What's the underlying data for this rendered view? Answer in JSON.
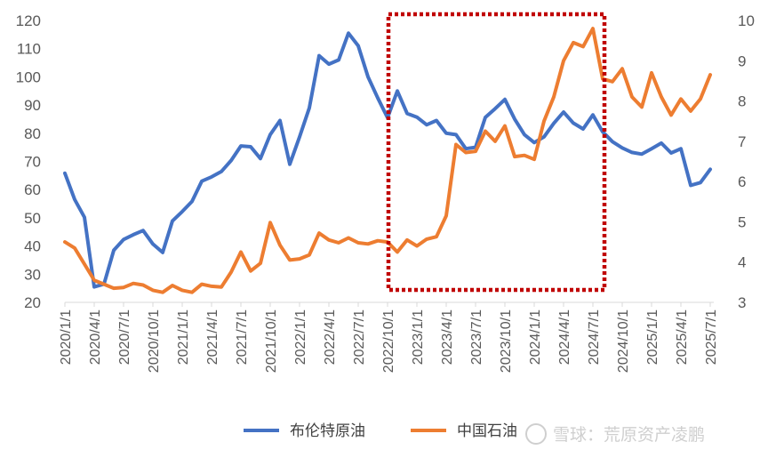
{
  "chart_data": {
    "type": "line",
    "title": "",
    "xlabel": "",
    "ylabel_left": "",
    "ylabel_right": "",
    "ylim_left": [
      20,
      120
    ],
    "ylim_right": [
      3,
      10
    ],
    "yticks_left": [
      "20",
      "30",
      "40",
      "50",
      "60",
      "70",
      "80",
      "90",
      "100",
      "110",
      "120"
    ],
    "yticks_right": [
      "3",
      "4",
      "5",
      "6",
      "7",
      "8",
      "9",
      "10"
    ],
    "xticks": [
      "2020/1/1",
      "2020/4/1",
      "2020/7/1",
      "2020/10/1",
      "2021/1/1",
      "2021/4/1",
      "2021/7/1",
      "2021/10/1",
      "2022/1/1",
      "2022/4/1",
      "2022/7/1",
      "2022/10/1",
      "2023/1/1",
      "2023/4/1",
      "2023/7/1",
      "2023/10/1",
      "2024/1/1",
      "2024/4/1",
      "2024/7/1",
      "2024/10/1",
      "2025/1/1",
      "2025/4/1",
      "2025/7/1"
    ],
    "grid": false,
    "legend_position": "bottom",
    "highlight_box": {
      "from": "2022/12",
      "to": "2024/7",
      "color": "#c00000",
      "style": "dotted"
    },
    "series": [
      {
        "name": "布伦特原油",
        "axis": "left",
        "color": "#4472c4",
        "values": [
          65.8,
          56.5,
          50.2,
          25.5,
          26.5,
          38.5,
          42.3,
          44,
          45.5,
          40.7,
          37.7,
          48.9,
          52.2,
          55.8,
          63,
          64.5,
          66.4,
          70.3,
          75.5,
          75.2,
          71,
          79.5,
          84.5,
          69,
          78.7,
          89,
          107.5,
          104.5,
          106,
          115.5,
          111,
          100,
          92.5,
          85.5,
          95,
          87,
          85.7,
          83,
          84.5,
          80,
          79.5,
          74.5,
          75,
          85.6,
          88.7,
          92,
          85,
          79.5,
          76.7,
          78.7,
          83.5,
          87.5,
          83.6,
          81.5,
          86.5,
          80.5,
          77,
          74.8,
          73.2,
          72.6,
          74.5,
          76.5,
          73,
          74.5,
          61.5,
          62.5,
          67.2
        ]
      },
      {
        "name": "中国石油",
        "axis": "right",
        "color": "#ed7d31",
        "values": [
          4.5,
          4.35,
          3.95,
          3.55,
          3.45,
          3.35,
          3.37,
          3.47,
          3.43,
          3.3,
          3.25,
          3.42,
          3.3,
          3.25,
          3.45,
          3.4,
          3.38,
          3.75,
          4.25,
          3.78,
          3.97,
          4.98,
          4.42,
          4.05,
          4.08,
          4.18,
          4.72,
          4.55,
          4.48,
          4.6,
          4.48,
          4.45,
          4.53,
          4.5,
          4.25,
          4.55,
          4.4,
          4.57,
          4.63,
          5.15,
          6.92,
          6.72,
          6.75,
          7.25,
          7,
          7.38,
          6.62,
          6.65,
          6.55,
          7.5,
          8.1,
          9,
          9.45,
          9.35,
          9.8,
          8.55,
          8.48,
          8.8,
          8.1,
          7.85,
          8.7,
          8.1,
          7.65,
          8.05,
          7.75,
          8.05,
          8.65
        ]
      }
    ]
  },
  "legend": {
    "item1": "布伦特原油",
    "item2": "中国石油"
  },
  "watermark": {
    "text": "雪球：荒原资产凌鹏"
  }
}
